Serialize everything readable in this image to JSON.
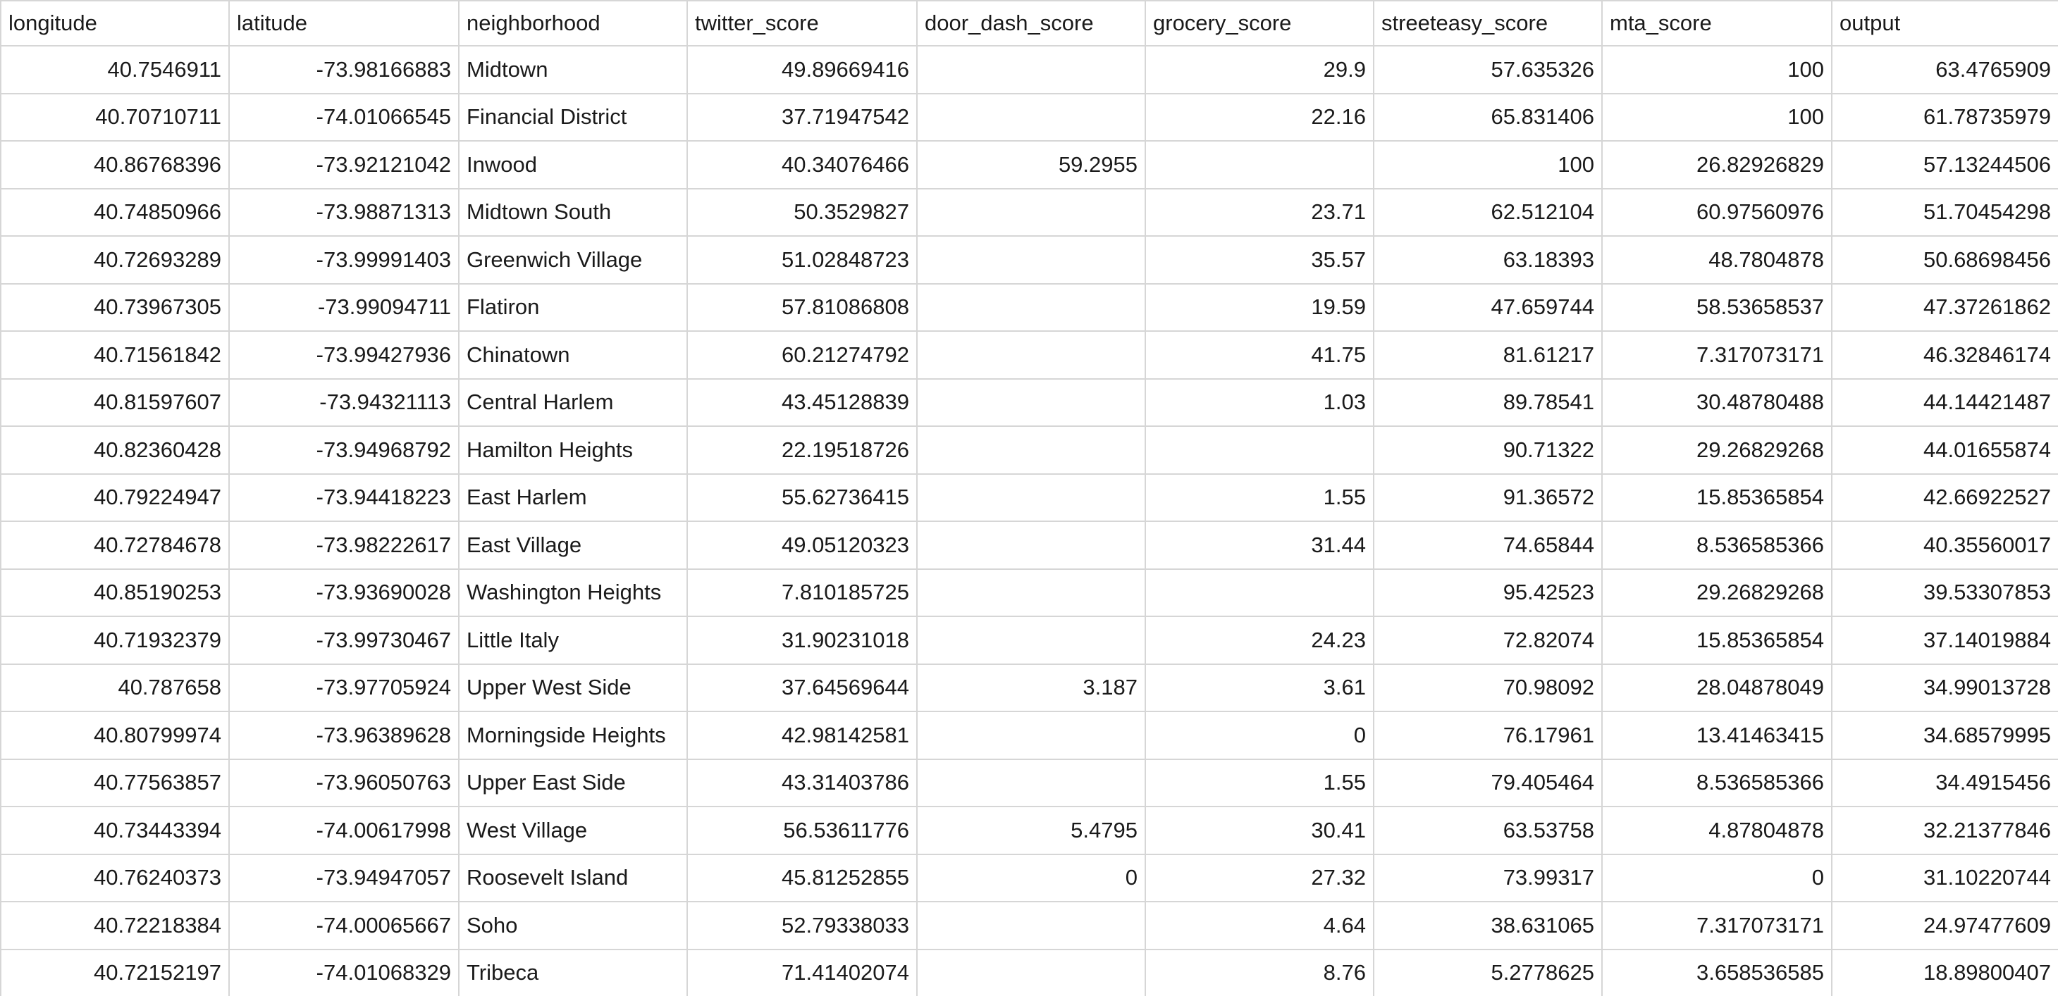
{
  "spreadsheet": {
    "columns": [
      {
        "key": "longitude",
        "label": "longitude",
        "align": "num"
      },
      {
        "key": "latitude",
        "label": "latitude",
        "align": "num"
      },
      {
        "key": "neighborhood",
        "label": "neighborhood",
        "align": "txt"
      },
      {
        "key": "twitter_score",
        "label": "twitter_score",
        "align": "num"
      },
      {
        "key": "door_dash_score",
        "label": "door_dash_score",
        "align": "num"
      },
      {
        "key": "grocery_score",
        "label": "grocery_score",
        "align": "num"
      },
      {
        "key": "streeteasy_score",
        "label": "streeteasy_score",
        "align": "num"
      },
      {
        "key": "mta_score",
        "label": "mta_score",
        "align": "num"
      },
      {
        "key": "output",
        "label": "output",
        "align": "num"
      }
    ],
    "rows": [
      [
        "40.7546911",
        "-73.98166883",
        "Midtown",
        "49.89669416",
        "",
        "29.9",
        "57.635326",
        "100",
        "63.4765909"
      ],
      [
        "40.70710711",
        "-74.01066545",
        "Financial District",
        "37.71947542",
        "",
        "22.16",
        "65.831406",
        "100",
        "61.78735979"
      ],
      [
        "40.86768396",
        "-73.92121042",
        "Inwood",
        "40.34076466",
        "59.2955",
        "",
        "100",
        "26.82926829",
        "57.13244506"
      ],
      [
        "40.74850966",
        "-73.98871313",
        "Midtown South",
        "50.3529827",
        "",
        "23.71",
        "62.512104",
        "60.97560976",
        "51.70454298"
      ],
      [
        "40.72693289",
        "-73.99991403",
        "Greenwich Village",
        "51.02848723",
        "",
        "35.57",
        "63.18393",
        "48.7804878",
        "50.68698456"
      ],
      [
        "40.73967305",
        "-73.99094711",
        "Flatiron",
        "57.81086808",
        "",
        "19.59",
        "47.659744",
        "58.53658537",
        "47.37261862"
      ],
      [
        "40.71561842",
        "-73.99427936",
        "Chinatown",
        "60.21274792",
        "",
        "41.75",
        "81.61217",
        "7.317073171",
        "46.32846174"
      ],
      [
        "40.81597607",
        "-73.94321113",
        "Central Harlem",
        "43.45128839",
        "",
        "1.03",
        "89.78541",
        "30.48780488",
        "44.14421487"
      ],
      [
        "40.82360428",
        "-73.94968792",
        "Hamilton Heights",
        "22.19518726",
        "",
        "",
        "90.71322",
        "29.26829268",
        "44.01655874"
      ],
      [
        "40.79224947",
        "-73.94418223",
        "East Harlem",
        "55.62736415",
        "",
        "1.55",
        "91.36572",
        "15.85365854",
        "42.66922527"
      ],
      [
        "40.72784678",
        "-73.98222617",
        "East Village",
        "49.05120323",
        "",
        "31.44",
        "74.65844",
        "8.536585366",
        "40.35560017"
      ],
      [
        "40.85190253",
        "-73.93690028",
        "Washington Heights",
        "7.810185725",
        "",
        "",
        "95.42523",
        "29.26829268",
        "39.53307853"
      ],
      [
        "40.71932379",
        "-73.99730467",
        "Little Italy",
        "31.90231018",
        "",
        "24.23",
        "72.82074",
        "15.85365854",
        "37.14019884"
      ],
      [
        "40.787658",
        "-73.97705924",
        "Upper West Side",
        "37.64569644",
        "3.187",
        "3.61",
        "70.98092",
        "28.04878049",
        "34.99013728"
      ],
      [
        "40.80799974",
        "-73.96389628",
        "Morningside Heights",
        "42.98142581",
        "",
        "0",
        "76.17961",
        "13.41463415",
        "34.68579995"
      ],
      [
        "40.77563857",
        "-73.96050763",
        "Upper East Side",
        "43.31403786",
        "",
        "1.55",
        "79.405464",
        "8.536585366",
        "34.4915456"
      ],
      [
        "40.73443394",
        "-74.00617998",
        "West Village",
        "56.53611776",
        "5.4795",
        "30.41",
        "63.53758",
        "4.87804878",
        "32.21377846"
      ],
      [
        "40.76240373",
        "-73.94947057",
        "Roosevelt Island",
        "45.81252855",
        "0",
        "27.32",
        "73.99317",
        "0",
        "31.10220744"
      ],
      [
        "40.72218384",
        "-74.00065667",
        "Soho",
        "52.79338033",
        "",
        "4.64",
        "38.631065",
        "7.317073171",
        "24.97477609"
      ],
      [
        "40.72152197",
        "-74.01068329",
        "Tribeca",
        "71.41402074",
        "",
        "8.76",
        "5.2778625",
        "3.658536585",
        "18.89800407"
      ]
    ]
  }
}
